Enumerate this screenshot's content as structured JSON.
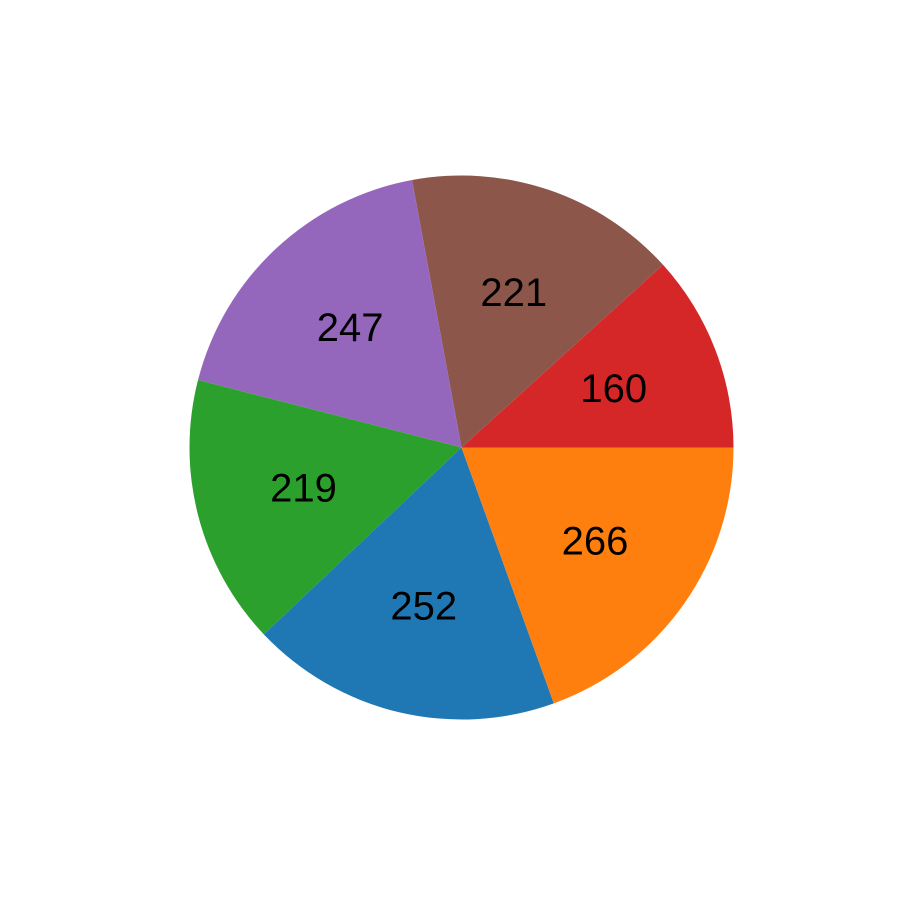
{
  "chart_data": {
    "type": "pie",
    "title": "",
    "start_angle_deg": 0,
    "direction": "counterclockwise",
    "slices": [
      {
        "value": 160,
        "label": "160",
        "color": "#d62728"
      },
      {
        "value": 221,
        "label": "221",
        "color": "#8c564b"
      },
      {
        "value": 247,
        "label": "247",
        "color": "#9467bd"
      },
      {
        "value": 219,
        "label": "219",
        "color": "#2ca02c"
      },
      {
        "value": 252,
        "label": "252",
        "color": "#1f77b4"
      },
      {
        "value": 266,
        "label": "266",
        "color": "#ff7f0e"
      }
    ]
  }
}
